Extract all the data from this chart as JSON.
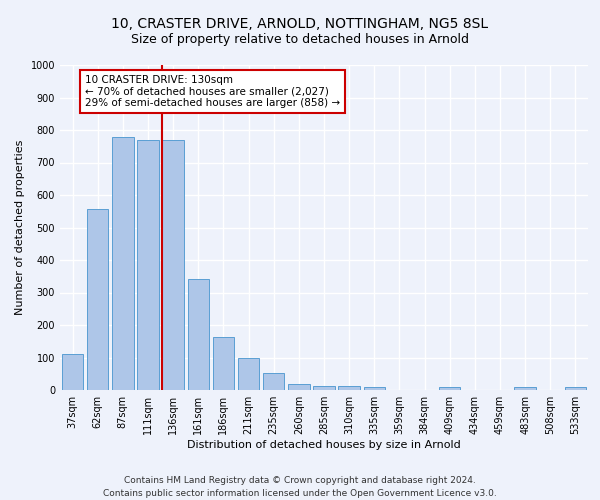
{
  "title": "10, CRASTER DRIVE, ARNOLD, NOTTINGHAM, NG5 8SL",
  "subtitle": "Size of property relative to detached houses in Arnold",
  "xlabel": "Distribution of detached houses by size in Arnold",
  "ylabel": "Number of detached properties",
  "categories": [
    "37sqm",
    "62sqm",
    "87sqm",
    "111sqm",
    "136sqm",
    "161sqm",
    "186sqm",
    "211sqm",
    "235sqm",
    "260sqm",
    "285sqm",
    "310sqm",
    "335sqm",
    "359sqm",
    "384sqm",
    "409sqm",
    "434sqm",
    "459sqm",
    "483sqm",
    "508sqm",
    "533sqm"
  ],
  "values": [
    112,
    558,
    778,
    770,
    770,
    343,
    163,
    97,
    52,
    17,
    13,
    13,
    10,
    0,
    0,
    8,
    0,
    0,
    8,
    0,
    8
  ],
  "bar_color": "#aec6e8",
  "bar_edge_color": "#5a9fd4",
  "vline_color": "#cc0000",
  "vline_x_index": 4,
  "annotation_text": "10 CRASTER DRIVE: 130sqm\n← 70% of detached houses are smaller (2,027)\n29% of semi-detached houses are larger (858) →",
  "annotation_box_facecolor": "#ffffff",
  "annotation_box_edgecolor": "#cc0000",
  "ylim": [
    0,
    1000
  ],
  "yticks": [
    0,
    100,
    200,
    300,
    400,
    500,
    600,
    700,
    800,
    900,
    1000
  ],
  "footer_line1": "Contains HM Land Registry data © Crown copyright and database right 2024.",
  "footer_line2": "Contains public sector information licensed under the Open Government Licence v3.0.",
  "bg_color": "#eef2fb",
  "grid_color": "#ffffff",
  "title_fontsize": 10,
  "subtitle_fontsize": 9,
  "axis_label_fontsize": 8,
  "tick_fontsize": 7,
  "annotation_fontsize": 7.5,
  "footer_fontsize": 6.5
}
